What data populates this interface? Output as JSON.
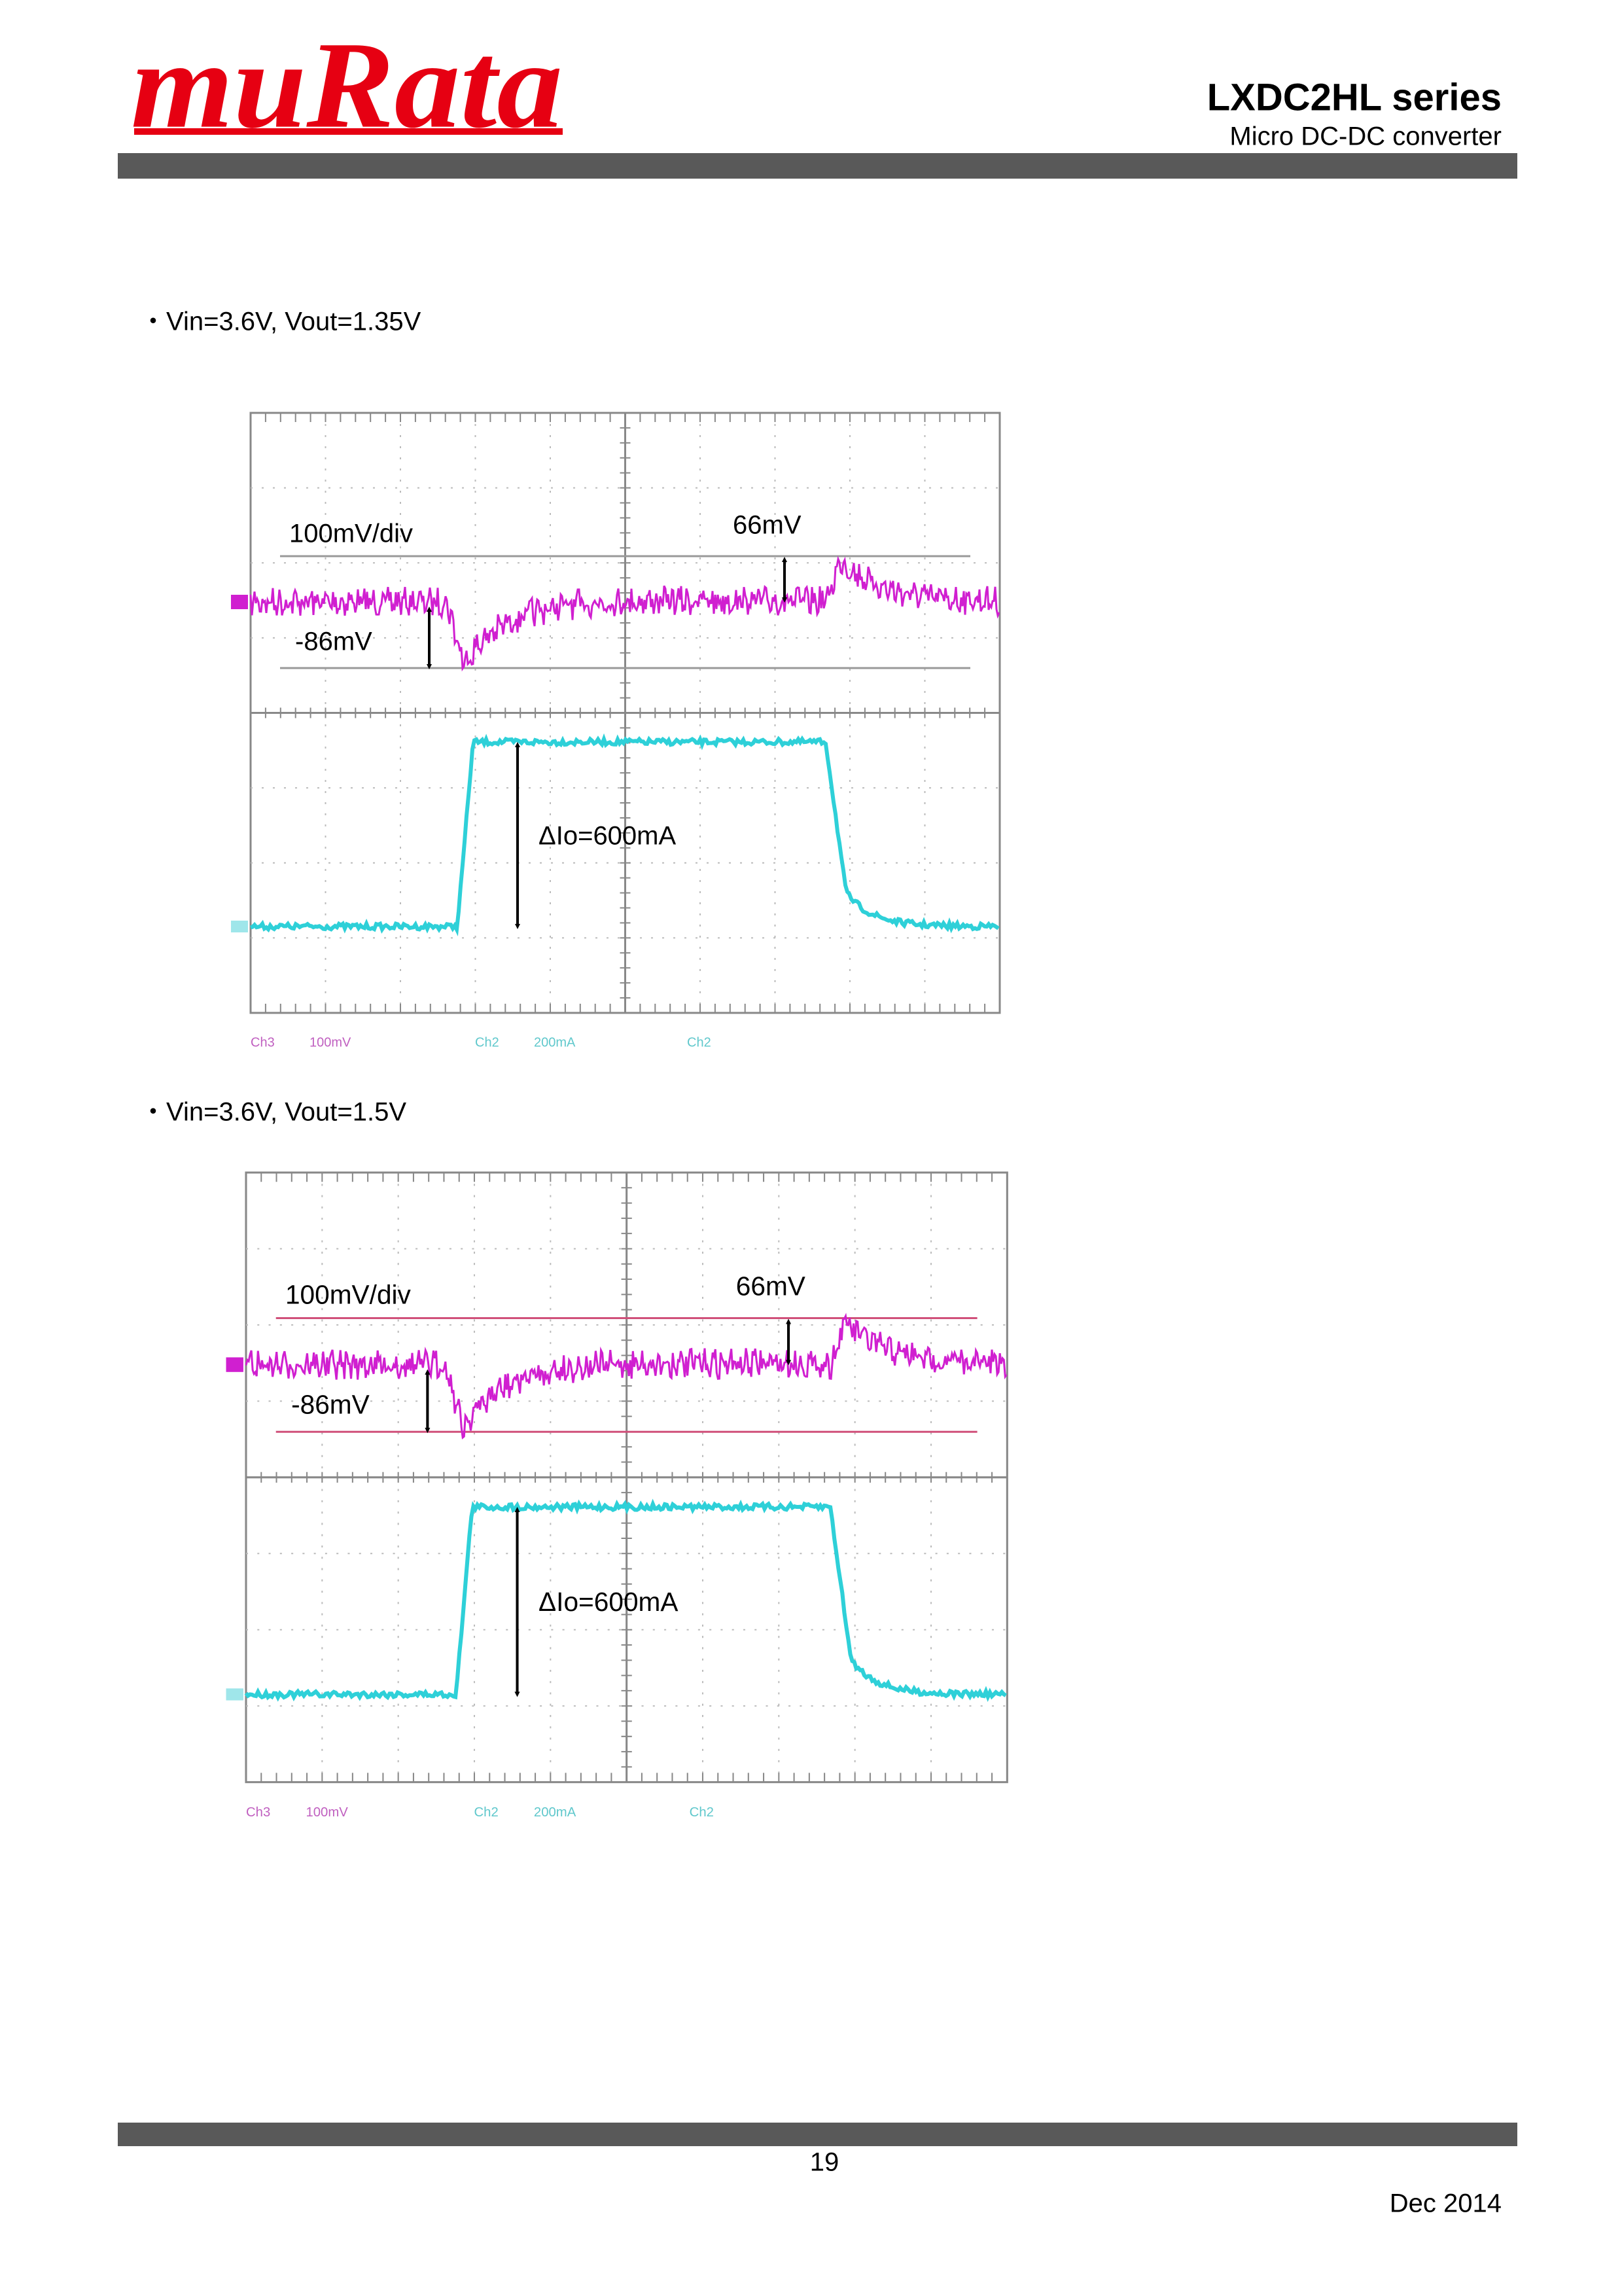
{
  "header": {
    "logo": "muRata",
    "title": "LXDC2HL  series",
    "subtitle": "Micro  DC-DC  converter"
  },
  "sections": [
    {
      "caption": "・Vin=3.6V, Vout=1.35V",
      "scale_label": "100mV/div",
      "overshoot_label": "66mV",
      "undershoot_label": "-86mV",
      "step_label": "ΔIo=600mA",
      "readout": [
        "Ch3",
        "100mV",
        "Ch2",
        "200mA",
        "Ch2"
      ]
    },
    {
      "caption": "・Vin=3.6V, Vout=1.5V",
      "scale_label": "100mV/div",
      "overshoot_label": "66mV",
      "undershoot_label": "-86mV",
      "step_label": "ΔIo=600mA",
      "readout": [
        "Ch3",
        "100mV",
        "Ch2",
        "200mA",
        "Ch2"
      ]
    }
  ],
  "footer": {
    "page": "19",
    "date": "Dec  2014"
  }
}
